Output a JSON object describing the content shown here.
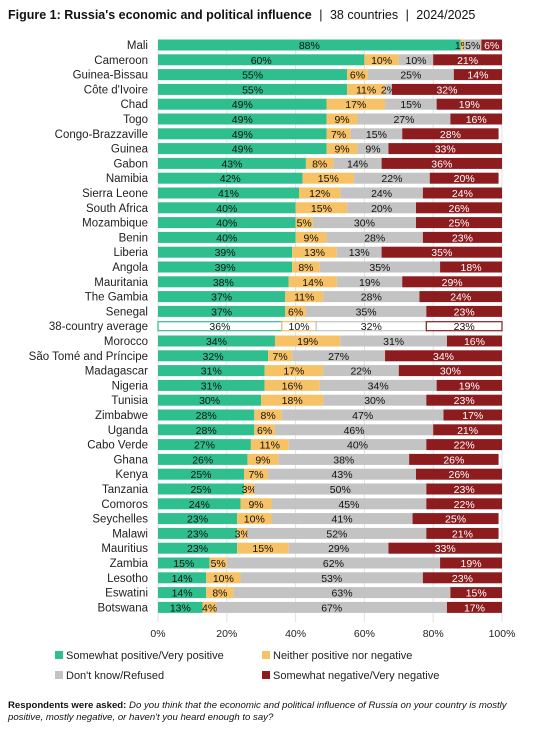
{
  "header": {
    "title_bold": "Figure 1: Russia's economic and political influence",
    "sep": "|",
    "subtitle_countries": "38 countries",
    "subtitle_years": "2024/2025"
  },
  "colors": {
    "positive": "#2fbf8f",
    "neither": "#f7c266",
    "dont_know": "#c3c3c3",
    "negative": "#8d1c1f"
  },
  "chart_data": {
    "type": "bar",
    "orientation": "horizontal",
    "stacked": true,
    "title": "Figure 1: Russia's economic and political influence",
    "xlim": [
      0,
      100
    ],
    "x_ticks": [
      "0%",
      "20%",
      "40%",
      "60%",
      "80%",
      "100%"
    ],
    "legend_position": "bottom",
    "series": [
      {
        "name": "Somewhat positive/Very positive",
        "color_key": "positive"
      },
      {
        "name": "Neither positive nor negative",
        "color_key": "neither"
      },
      {
        "name": "Don't know/Refused",
        "color_key": "dont_know"
      },
      {
        "name": "Somewhat negative/Very negative",
        "color_key": "negative"
      }
    ],
    "rows": [
      {
        "label": "Mali",
        "values": [
          88,
          1,
          5,
          6
        ],
        "labels": [
          "88%",
          "1%",
          "5%",
          "6%"
        ]
      },
      {
        "label": "Cameroon",
        "values": [
          60,
          10,
          10,
          21
        ],
        "labels": [
          "60%",
          "10%",
          "10%",
          "21%"
        ]
      },
      {
        "label": "Guinea-Bissau",
        "values": [
          55,
          6,
          25,
          14
        ],
        "labels": [
          "55%",
          "6%",
          "25%",
          "14%"
        ]
      },
      {
        "label": "Côte d'Ivoire",
        "values": [
          55,
          11,
          2,
          32
        ],
        "labels": [
          "55%",
          "11%",
          "2%",
          "32%"
        ]
      },
      {
        "label": "Chad",
        "values": [
          49,
          17,
          15,
          19
        ],
        "labels": [
          "49%",
          "17%",
          "15%",
          "19%"
        ]
      },
      {
        "label": "Togo",
        "values": [
          49,
          9,
          27,
          16
        ],
        "labels": [
          "49%",
          "9%",
          "27%",
          "16%"
        ]
      },
      {
        "label": "Congo-Brazzaville",
        "values": [
          49,
          7,
          15,
          28
        ],
        "labels": [
          "49%",
          "7%",
          "15%",
          "28%"
        ]
      },
      {
        "label": "Guinea",
        "values": [
          49,
          9,
          9,
          33
        ],
        "labels": [
          "49%",
          "9%",
          "9%",
          "33%"
        ]
      },
      {
        "label": "Gabon",
        "values": [
          43,
          8,
          14,
          36
        ],
        "labels": [
          "43%",
          "8%",
          "14%",
          "36%"
        ]
      },
      {
        "label": "Namibia",
        "values": [
          42,
          15,
          22,
          20
        ],
        "labels": [
          "42%",
          "15%",
          "22%",
          "20%"
        ]
      },
      {
        "label": "Sierra Leone",
        "values": [
          41,
          12,
          24,
          24
        ],
        "labels": [
          "41%",
          "12%",
          "24%",
          "24%"
        ]
      },
      {
        "label": "South Africa",
        "values": [
          40,
          15,
          20,
          26
        ],
        "labels": [
          "40%",
          "15%",
          "20%",
          "26%"
        ]
      },
      {
        "label": "Mozambique",
        "values": [
          40,
          5,
          30,
          25
        ],
        "labels": [
          "40%",
          "5%",
          "30%",
          "25%"
        ]
      },
      {
        "label": "Benin",
        "values": [
          40,
          9,
          28,
          23
        ],
        "labels": [
          "40%",
          "9%",
          "28%",
          "23%"
        ]
      },
      {
        "label": "Liberia",
        "values": [
          39,
          13,
          13,
          35
        ],
        "labels": [
          "39%",
          "13%",
          "13%",
          "35%"
        ]
      },
      {
        "label": "Angola",
        "values": [
          39,
          8,
          35,
          18
        ],
        "labels": [
          "39%",
          "8%",
          "35%",
          "18%"
        ]
      },
      {
        "label": "Mauritania",
        "values": [
          38,
          14,
          19,
          29
        ],
        "labels": [
          "38%",
          "14%",
          "19%",
          "29%"
        ]
      },
      {
        "label": "The Gambia",
        "values": [
          37,
          11,
          28,
          24
        ],
        "labels": [
          "37%",
          "11%",
          "28%",
          "24%"
        ]
      },
      {
        "label": "Senegal",
        "values": [
          37,
          6,
          35,
          23
        ],
        "labels": [
          "37%",
          "6%",
          "35%",
          "23%"
        ]
      },
      {
        "label": "38-country average",
        "values": [
          36,
          10,
          32,
          23
        ],
        "labels": [
          "36%",
          "10%",
          "32%",
          "23%"
        ],
        "average": true
      },
      {
        "label": "Morocco",
        "values": [
          34,
          19,
          31,
          16
        ],
        "labels": [
          "34%",
          "19%",
          "31%",
          "16%"
        ]
      },
      {
        "label": "São Tomé and Príncipe",
        "values": [
          32,
          7,
          27,
          34
        ],
        "labels": [
          "32%",
          "7%",
          "27%",
          "34%"
        ]
      },
      {
        "label": "Madagascar",
        "values": [
          31,
          17,
          22,
          30
        ],
        "labels": [
          "31%",
          "17%",
          "22%",
          "30%"
        ]
      },
      {
        "label": "Nigeria",
        "values": [
          31,
          16,
          34,
          19
        ],
        "labels": [
          "31%",
          "16%",
          "34%",
          "19%"
        ]
      },
      {
        "label": "Tunisia",
        "values": [
          30,
          18,
          30,
          23
        ],
        "labels": [
          "30%",
          "18%",
          "30%",
          "23%"
        ]
      },
      {
        "label": "Zimbabwe",
        "values": [
          28,
          8,
          47,
          17
        ],
        "labels": [
          "28%",
          "8%",
          "47%",
          "17%"
        ]
      },
      {
        "label": "Uganda",
        "values": [
          28,
          6,
          46,
          21
        ],
        "labels": [
          "28%",
          "6%",
          "46%",
          "21%"
        ]
      },
      {
        "label": "Cabo Verde",
        "values": [
          27,
          11,
          40,
          22
        ],
        "labels": [
          "27%",
          "11%",
          "40%",
          "22%"
        ]
      },
      {
        "label": "Ghana",
        "values": [
          26,
          9,
          38,
          26
        ],
        "labels": [
          "26%",
          "9%",
          "38%",
          "26%"
        ]
      },
      {
        "label": "Kenya",
        "values": [
          25,
          7,
          43,
          26
        ],
        "labels": [
          "25%",
          "7%",
          "43%",
          "26%"
        ]
      },
      {
        "label": "Tanzania",
        "values": [
          25,
          3,
          50,
          23
        ],
        "labels": [
          "25%",
          "3%",
          "50%",
          "23%"
        ]
      },
      {
        "label": "Comoros",
        "values": [
          24,
          9,
          45,
          22
        ],
        "labels": [
          "24%",
          "9%",
          "45%",
          "22%"
        ]
      },
      {
        "label": "Seychelles",
        "values": [
          23,
          10,
          41,
          25
        ],
        "labels": [
          "23%",
          "10%",
          "41%",
          "25%"
        ]
      },
      {
        "label": "Malawi",
        "values": [
          23,
          3,
          52,
          21
        ],
        "labels": [
          "23%",
          "3%",
          "52%",
          "21%"
        ]
      },
      {
        "label": "Mauritius",
        "values": [
          23,
          15,
          29,
          33
        ],
        "labels": [
          "23%",
          "15%",
          "29%",
          "33%"
        ]
      },
      {
        "label": "Zambia",
        "values": [
          15,
          5,
          62,
          19
        ],
        "labels": [
          "15%",
          "5%",
          "62%",
          "19%"
        ]
      },
      {
        "label": "Lesotho",
        "values": [
          14,
          10,
          53,
          23
        ],
        "labels": [
          "14%",
          "10%",
          "53%",
          "23%"
        ]
      },
      {
        "label": "Eswatini",
        "values": [
          14,
          8,
          63,
          15
        ],
        "labels": [
          "14%",
          "8%",
          "63%",
          "15%"
        ]
      },
      {
        "label": "Botswana",
        "values": [
          13,
          4,
          67,
          17
        ],
        "labels": [
          "13%",
          "4%",
          "67%",
          "17%"
        ]
      }
    ]
  },
  "footnote": {
    "lead": "Respondents were asked:",
    "question": "Do you think that the economic and political influence of Russia on your country is mostly positive, mostly negative, or haven't you heard enough to say?"
  }
}
